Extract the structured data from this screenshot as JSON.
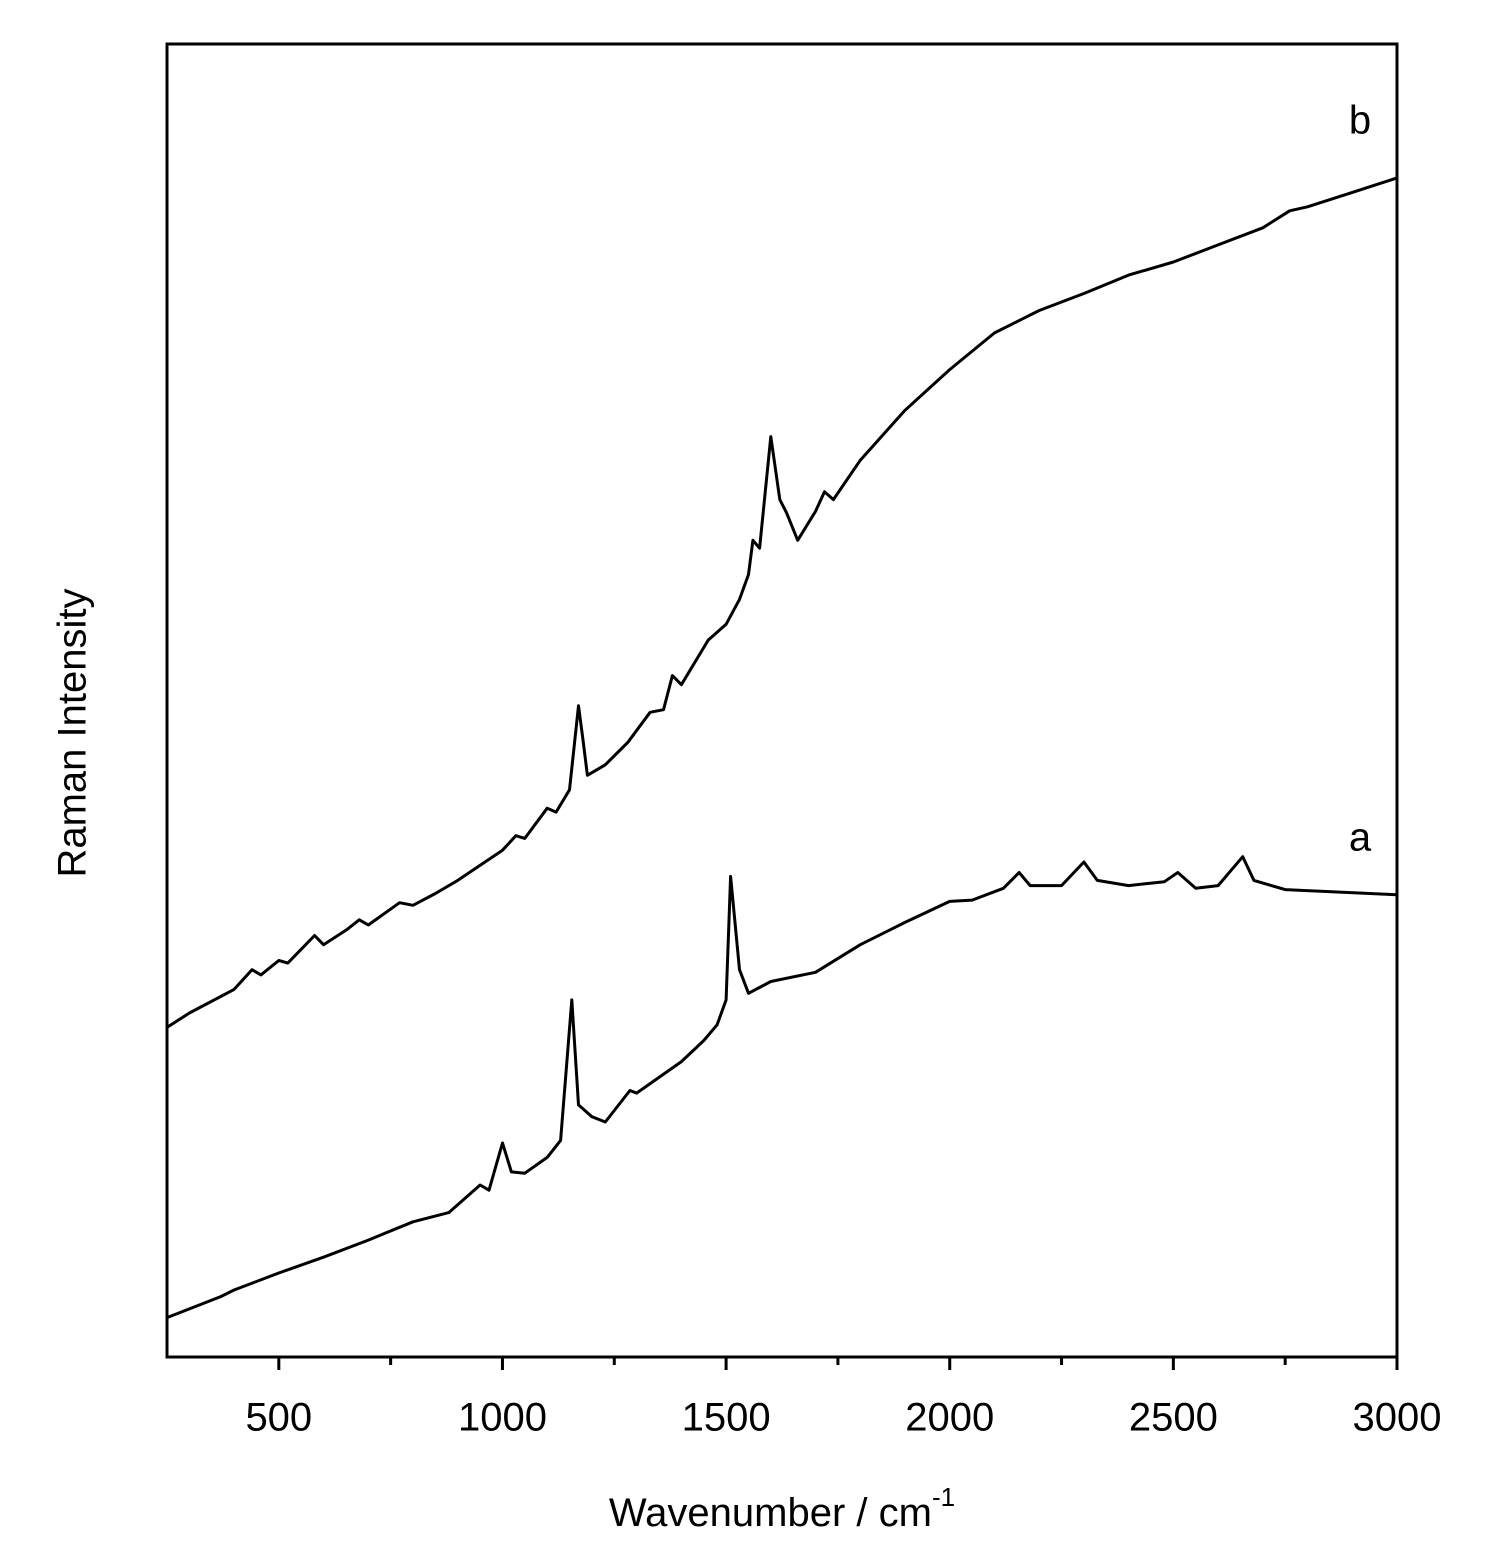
{
  "chart_data": {
    "type": "line",
    "x_label": "Wavenumber / cm",
    "x_label_superscript": "-1",
    "y_label": "Raman Intensity",
    "xlim": [
      250,
      3000
    ],
    "xticks": [
      500,
      1000,
      1500,
      2000,
      2500,
      3000
    ],
    "minor_xticks": [
      750,
      1250,
      1750,
      2250,
      2750
    ],
    "ylim": [
      0,
      100
    ],
    "series": [
      {
        "name": "a",
        "color": "#000000",
        "x": [
          250,
          370,
          400,
          500,
          600,
          700,
          800,
          880,
          950,
          970,
          1000,
          1020,
          1050,
          1100,
          1130,
          1155,
          1170,
          1190,
          1200,
          1230,
          1285,
          1300,
          1400,
          1450,
          1480,
          1500,
          1510,
          1530,
          1550,
          1600,
          1700,
          1800,
          1900,
          2000,
          2050,
          2120,
          2155,
          2180,
          2250,
          2300,
          2330,
          2400,
          2480,
          2510,
          2550,
          2600,
          2655,
          2680,
          2750,
          3000
        ],
        "values": [
          3.0,
          4.6,
          5.1,
          6.4,
          7.6,
          8.9,
          10.3,
          11.0,
          13.1,
          12.7,
          16.3,
          14.1,
          14.0,
          15.2,
          16.5,
          27.2,
          19.2,
          18.6,
          18.3,
          17.9,
          20.3,
          20.1,
          22.5,
          24.1,
          25.3,
          27.2,
          36.6,
          29.5,
          27.7,
          28.6,
          29.3,
          31.4,
          33.1,
          34.7,
          34.8,
          35.7,
          36.9,
          35.9,
          35.9,
          37.7,
          36.3,
          35.9,
          36.2,
          36.9,
          35.7,
          35.9,
          38.1,
          36.3,
          35.6,
          35.2
        ]
      },
      {
        "name": "b",
        "color": "#000000",
        "x": [
          250,
          300,
          400,
          440,
          460,
          500,
          520,
          580,
          600,
          650,
          680,
          700,
          770,
          800,
          850,
          900,
          1000,
          1030,
          1050,
          1100,
          1120,
          1150,
          1170,
          1180,
          1190,
          1230,
          1280,
          1330,
          1360,
          1380,
          1400,
          1460,
          1500,
          1530,
          1550,
          1560,
          1575,
          1600,
          1620,
          1635,
          1660,
          1700,
          1720,
          1740,
          1800,
          1900,
          2000,
          2100,
          2200,
          2300,
          2400,
          2500,
          2600,
          2700,
          2760,
          2800,
          2900,
          3000
        ],
        "values": [
          25.1,
          26.2,
          28.0,
          29.5,
          29.1,
          30.2,
          30.0,
          32.1,
          31.4,
          32.5,
          33.3,
          32.9,
          34.6,
          34.4,
          35.3,
          36.3,
          38.6,
          39.7,
          39.5,
          41.8,
          41.5,
          43.2,
          49.6,
          47.0,
          44.3,
          45.1,
          46.8,
          49.1,
          49.3,
          51.9,
          51.2,
          54.6,
          55.8,
          57.7,
          59.6,
          62.2,
          61.6,
          70.1,
          65.3,
          64.3,
          62.2,
          64.4,
          65.9,
          65.3,
          68.3,
          72.1,
          75.2,
          78.0,
          79.7,
          81.0,
          82.4,
          83.4,
          84.7,
          86.0,
          87.3,
          87.6,
          88.7,
          89.8
        ]
      }
    ]
  }
}
